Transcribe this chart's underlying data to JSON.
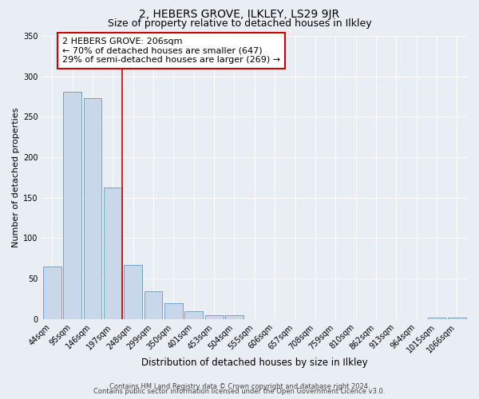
{
  "title": "2, HEBERS GROVE, ILKLEY, LS29 9JR",
  "subtitle": "Size of property relative to detached houses in Ilkley",
  "xlabel": "Distribution of detached houses by size in Ilkley",
  "ylabel": "Number of detached properties",
  "bar_labels": [
    "44sqm",
    "95sqm",
    "146sqm",
    "197sqm",
    "248sqm",
    "299sqm",
    "350sqm",
    "401sqm",
    "453sqm",
    "504sqm",
    "555sqm",
    "606sqm",
    "657sqm",
    "708sqm",
    "759sqm",
    "810sqm",
    "862sqm",
    "913sqm",
    "964sqm",
    "1015sqm",
    "1066sqm"
  ],
  "bar_values": [
    65,
    281,
    273,
    163,
    67,
    34,
    20,
    10,
    5,
    5,
    0,
    0,
    0,
    0,
    0,
    0,
    0,
    0,
    0,
    2,
    2
  ],
  "bar_color": "#c8d8ea",
  "bar_edge_color": "#6699bb",
  "vline_x_index": 3,
  "vline_color": "#cc0000",
  "annotation_lines": [
    "2 HEBERS GROVE: 206sqm",
    "← 70% of detached houses are smaller (647)",
    "29% of semi-detached houses are larger (269) →"
  ],
  "annotation_box_color": "#cc0000",
  "ylim": [
    0,
    350
  ],
  "yticks": [
    0,
    50,
    100,
    150,
    200,
    250,
    300,
    350
  ],
  "footer_lines": [
    "Contains HM Land Registry data © Crown copyright and database right 2024.",
    "Contains public sector information licensed under the Open Government Licence v3.0."
  ],
  "bg_color": "#e8eef4",
  "plot_bg_color": "#e8eef4",
  "grid_color": "#ffffff",
  "title_fontsize": 10,
  "subtitle_fontsize": 9,
  "xlabel_fontsize": 8.5,
  "ylabel_fontsize": 8,
  "tick_fontsize": 7,
  "annotation_fontsize": 8,
  "footer_fontsize": 6
}
